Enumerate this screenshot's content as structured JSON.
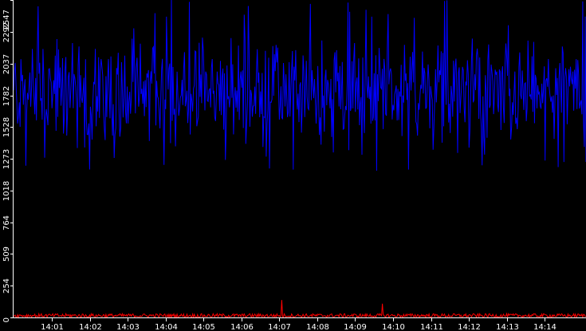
{
  "chart_data": {
    "type": "line",
    "background": "#000000",
    "grid": false,
    "legend": "none",
    "x_ticks": [
      "14:01",
      "14:02",
      "14:03",
      "14:04",
      "14:05",
      "14:06",
      "14:07",
      "14:08",
      "14:09",
      "14:10",
      "14:11",
      "14:12",
      "14:13",
      "14:14"
    ],
    "x_range_minutes": [
      14.0,
      14.97
    ],
    "y_ticks": [
      0,
      254,
      509,
      764,
      1018,
      1273,
      1528,
      1782,
      2037,
      2292,
      2547
    ],
    "ylim": [
      0,
      2547
    ],
    "series": [
      {
        "color": "#0000ff",
        "typical_range": [
          1400,
          2200
        ],
        "min_approx": 1160,
        "max_approx": 2560,
        "mean_approx": 1800
      },
      {
        "color": "#ff0000",
        "typical_range": [
          0,
          30
        ],
        "spikes": [
          {
            "x": "14:07",
            "y": 140
          },
          {
            "x": "14:09",
            "y": 110
          }
        ]
      }
    ]
  }
}
